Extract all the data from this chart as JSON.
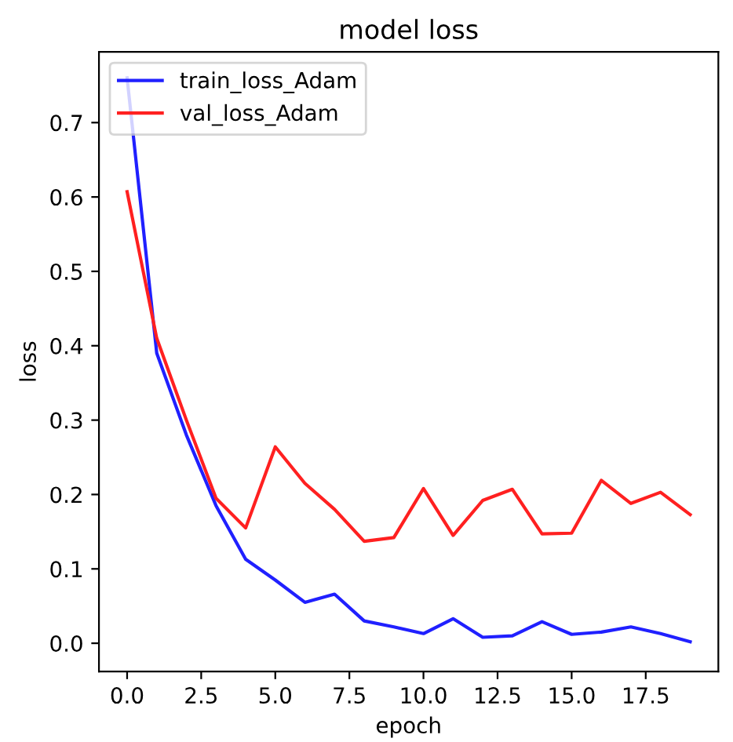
{
  "chart_data": {
    "type": "line",
    "title": "model loss",
    "xlabel": "epoch",
    "ylabel": "loss",
    "x": [
      0,
      1,
      2,
      3,
      4,
      5,
      6,
      7,
      8,
      9,
      10,
      11,
      12,
      13,
      14,
      15,
      16,
      17,
      18,
      19
    ],
    "series": [
      {
        "name": "train_loss_Adam",
        "color": "#2020ff",
        "values": [
          0.76,
          0.39,
          0.28,
          0.185,
          0.113,
          0.085,
          0.055,
          0.066,
          0.03,
          0.022,
          0.013,
          0.033,
          0.008,
          0.01,
          0.029,
          0.012,
          0.015,
          0.022,
          0.013,
          0.002
        ]
      },
      {
        "name": "val_loss_Adam",
        "color": "#ff2020",
        "values": [
          0.607,
          0.41,
          0.3,
          0.195,
          0.155,
          0.264,
          0.215,
          0.18,
          0.137,
          0.142,
          0.208,
          0.145,
          0.192,
          0.207,
          0.147,
          0.148,
          0.219,
          0.188,
          0.203,
          0.173
        ]
      }
    ],
    "xlim": [
      -0.95,
      19.95
    ],
    "ylim": [
      -0.038,
      0.795
    ],
    "xticks": [
      {
        "value": 0,
        "label": "0.0"
      },
      2.5,
      {
        "value": 5,
        "label": "5.0"
      },
      7.5,
      {
        "value": 10,
        "label": "10.0"
      },
      12.5,
      {
        "value": 15,
        "label": "15.0"
      },
      17.5
    ],
    "yticks": [
      {
        "value": 0,
        "label": "0.0"
      },
      0.1,
      0.2,
      0.3,
      0.4,
      0.5,
      0.6,
      0.7
    ],
    "legend": "top left",
    "grid": false,
    "marker": "none",
    "line_style": "solid"
  }
}
